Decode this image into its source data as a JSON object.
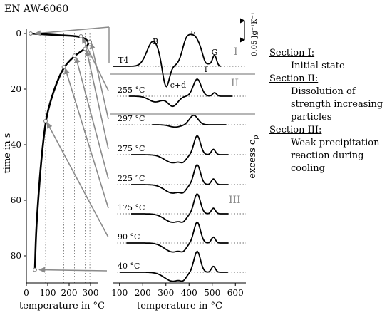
{
  "title": "EN AW-6060",
  "left_plot": {
    "xlabel": "temperature in °C",
    "ylabel": "time in s",
    "x_ticks": [
      0,
      100,
      200,
      300
    ],
    "y_ticks": [
      0,
      20,
      40,
      60,
      80
    ],
    "xlim": [
      0,
      360
    ],
    "ylim": [
      0,
      90
    ],
    "marked_points": [
      {
        "label": "T4",
        "temperature": 20,
        "time": 0
      },
      {
        "label": "255 °C",
        "temperature": 255,
        "time": 1.0
      },
      {
        "label": "297 °C",
        "temperature": 297,
        "time": 3.0
      },
      {
        "label": "275 °C",
        "temperature": 275,
        "time": 5.5
      },
      {
        "label": "225 °C",
        "temperature": 225,
        "time": 8.0
      },
      {
        "label": "175 °C",
        "temperature": 175,
        "time": 12.0
      },
      {
        "label": "90 °C",
        "temperature": 90,
        "time": 31.5
      },
      {
        "label": "40 °C",
        "temperature": 40,
        "time": 85.0
      }
    ]
  },
  "right_plot": {
    "xlabel": "temperature in °C",
    "ylabel": "excess c",
    "ylabel_sub": "p",
    "x_ticks": [
      100,
      200,
      300,
      400,
      500,
      600
    ],
    "xlim": [
      70,
      620
    ],
    "scale_bar_label": "0.05 Jg⁻¹K⁻¹",
    "curve_labels": [
      "T4",
      "255 °C",
      "297 °C",
      "275 °C",
      "225 °C",
      "175 °C",
      "90 °C",
      "40 °C"
    ],
    "peak_labels": [
      "B",
      "c+d",
      "E",
      "f",
      "G"
    ],
    "section_labels": [
      "I",
      "II",
      "III"
    ]
  },
  "legend": [
    {
      "section": "Section I:",
      "description": "Initial state"
    },
    {
      "section": "Section II:",
      "description": "Dissolution of strength increasing particles"
    },
    {
      "section": "Section III:",
      "description": "Weak precipitation reaction during cooling"
    }
  ],
  "colors": {
    "curve": "#000000",
    "arrow": "#8a8a8a",
    "section_line": "#8a8a8a",
    "section_label": "#8a8a8a",
    "dotted_guide": "#6a6a6a"
  }
}
